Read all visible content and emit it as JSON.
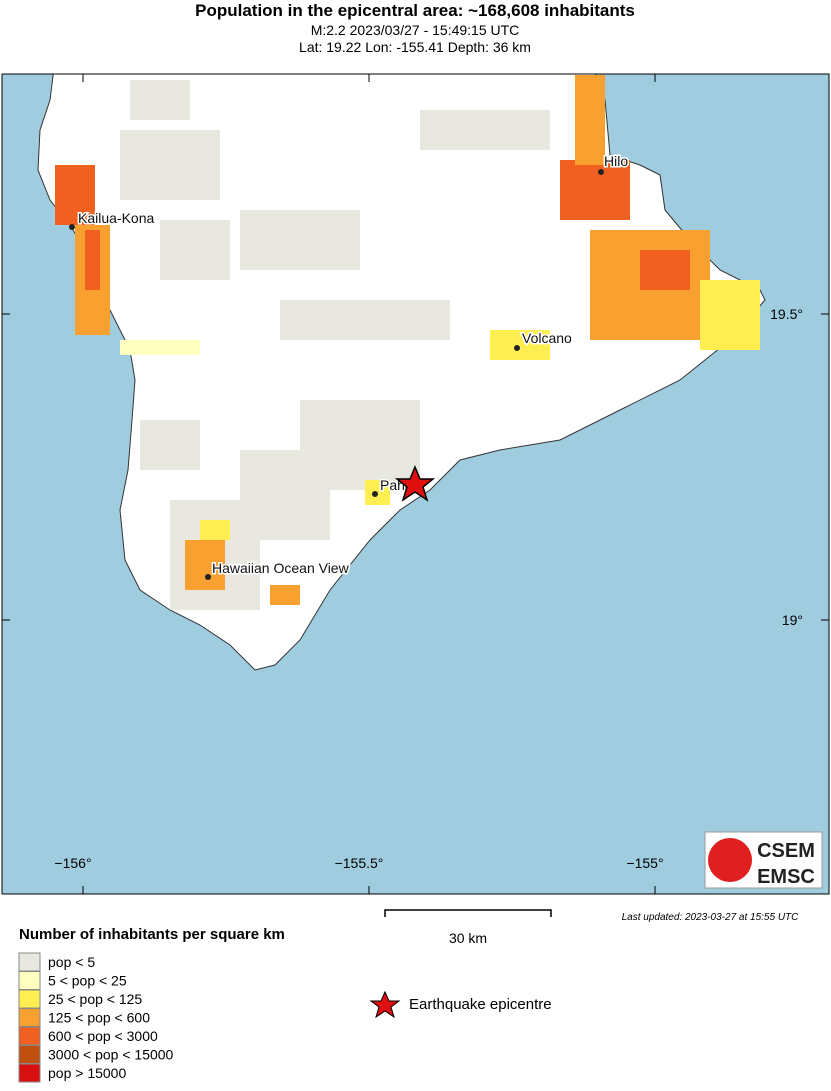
{
  "header": {
    "title": "Population in the epicentral area: ~168,608 inhabitants",
    "line1": "M:2.2 2023/03/27 - 15:49:15 UTC",
    "line2": "Lat: 19.22 Lon: -155.41 Depth: 36 km"
  },
  "map": {
    "places": [
      "Kailua-Kona",
      "Hilo",
      "Volcano",
      "Pahala",
      "Hawaiian Ocean View"
    ],
    "lon_ticks": [
      "−156°",
      "−155.5°",
      "−155°"
    ],
    "lat_ticks": [
      "19.5°",
      "19°"
    ],
    "logo": [
      "CSEM",
      "EMSC"
    ]
  },
  "scale": {
    "label": "30 km"
  },
  "updated": "Last updated: 2023-03-27 at 15:55 UTC",
  "legend": {
    "title": "Number of inhabitants per square km",
    "items": [
      {
        "label": "pop < 5",
        "color": "#e8e8e0"
      },
      {
        "label": "5 < pop < 25",
        "color": "#ffffc0"
      },
      {
        "label": "25 < pop < 125",
        "color": "#ffee50"
      },
      {
        "label": "125 < pop < 600",
        "color": "#f8a030"
      },
      {
        "label": "600 < pop < 3000",
        "color": "#f06020"
      },
      {
        "label": "3000 < pop < 15000",
        "color": "#c05010"
      },
      {
        "label": "pop > 15000",
        "color": "#d81010"
      }
    ],
    "epicentre": "Earthquake epicentre"
  }
}
